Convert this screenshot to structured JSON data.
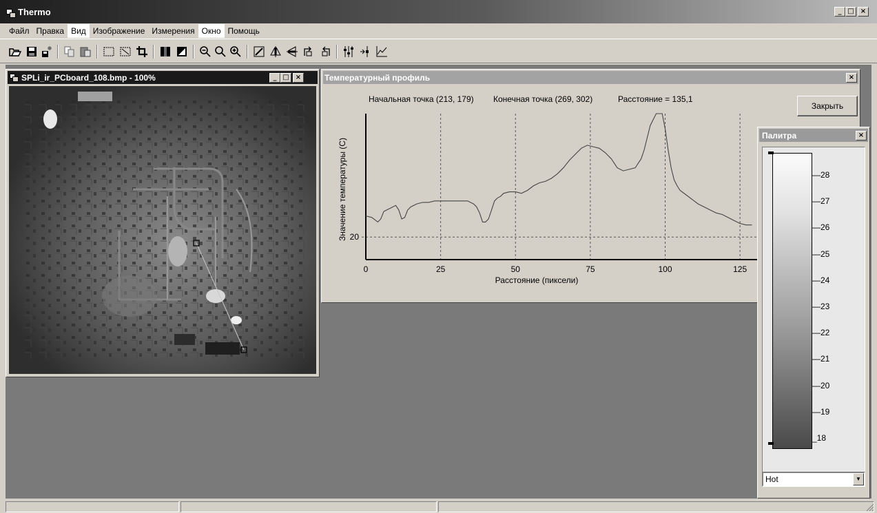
{
  "window": {
    "title": "Thermo",
    "controls": {
      "minimize": "_",
      "maximize": "□",
      "close": "×"
    }
  },
  "menu": [
    "Файл",
    "Правка",
    "Вид",
    "Изображение",
    "Измерения",
    "Окно",
    "Помощь"
  ],
  "toolbar_icons": [
    "open-icon",
    "save-icon",
    "save-as-icon",
    "copy-icon",
    "paste-icon",
    "select-rect-icon",
    "select-all-icon",
    "crop-icon",
    "grayscale-icon",
    "invert-icon",
    "zoom-out-icon",
    "zoom-icon",
    "zoom-in-icon",
    "edit-icon",
    "flip-vertical-icon",
    "flip-horizontal-icon",
    "rotate-right-icon",
    "rotate-left-icon",
    "levels-icon",
    "point-measure-icon",
    "profile-icon"
  ],
  "image_window": {
    "title": "SPLi_ir_PCboard_108.bmp - 100%",
    "controls": {
      "minimize": "_",
      "maximize": "□",
      "close": "×"
    }
  },
  "profile_window": {
    "title": "Температурный профиль",
    "start_point": "Начальная точка (213, 179)",
    "end_point": "Конечная точка (269, 302)",
    "distance": "Расстояние = 135,1",
    "close_button": "Закрыть",
    "close": "×"
  },
  "chart_data": {
    "type": "line",
    "xlabel": "Расстояние (пиксели)",
    "ylabel": "Значение температуры (С)",
    "x_ticks": [
      0,
      25,
      50,
      75,
      100,
      125
    ],
    "y_ticks": [
      20
    ],
    "xlim": [
      0,
      130
    ],
    "ylim": [
      19.25,
      24.1
    ],
    "grid": true,
    "series": [
      {
        "x": [
          0,
          2,
          4,
          5,
          6,
          7,
          8,
          9,
          10,
          11,
          12,
          13,
          14,
          15,
          17,
          19,
          21,
          23,
          25,
          28,
          31,
          34,
          36,
          37,
          38,
          39,
          40,
          41,
          42,
          43,
          44,
          45,
          46,
          48,
          50,
          52,
          54,
          56,
          58,
          60,
          62,
          64,
          66,
          68,
          70,
          72,
          74,
          76,
          78,
          80,
          82,
          84,
          86,
          88,
          90,
          91,
          92,
          93,
          94,
          95,
          96,
          97,
          98,
          99,
          100,
          101,
          102,
          103,
          104,
          105,
          107,
          109,
          111,
          113,
          115,
          117,
          119,
          121,
          123,
          125,
          127,
          129
        ],
        "y": [
          20.7,
          20.65,
          20.5,
          20.6,
          20.85,
          20.9,
          20.95,
          21.0,
          21.05,
          20.9,
          20.6,
          20.65,
          20.9,
          21.0,
          21.1,
          21.15,
          21.15,
          21.2,
          21.2,
          21.2,
          21.2,
          21.2,
          21.1,
          21.0,
          20.8,
          20.5,
          20.5,
          20.6,
          20.9,
          21.2,
          21.3,
          21.35,
          21.45,
          21.5,
          21.5,
          21.45,
          21.55,
          21.7,
          21.8,
          21.85,
          21.95,
          22.1,
          22.3,
          22.55,
          22.75,
          22.95,
          23.05,
          23.0,
          22.95,
          22.8,
          22.6,
          22.3,
          22.2,
          22.25,
          22.3,
          22.45,
          22.6,
          22.9,
          23.3,
          23.7,
          23.9,
          24.1,
          24.1,
          24.1,
          23.6,
          22.9,
          22.3,
          21.9,
          21.7,
          21.55,
          21.4,
          21.25,
          21.1,
          21.0,
          20.9,
          20.8,
          20.75,
          20.65,
          20.55,
          20.45,
          20.4,
          20.4
        ]
      }
    ]
  },
  "palette_window": {
    "title": "Палитра",
    "close": "×",
    "scale": [
      "28",
      "27",
      "26",
      "25",
      "24",
      "23",
      "22",
      "21",
      "20",
      "19",
      "18"
    ],
    "palette_name": "Hot"
  }
}
